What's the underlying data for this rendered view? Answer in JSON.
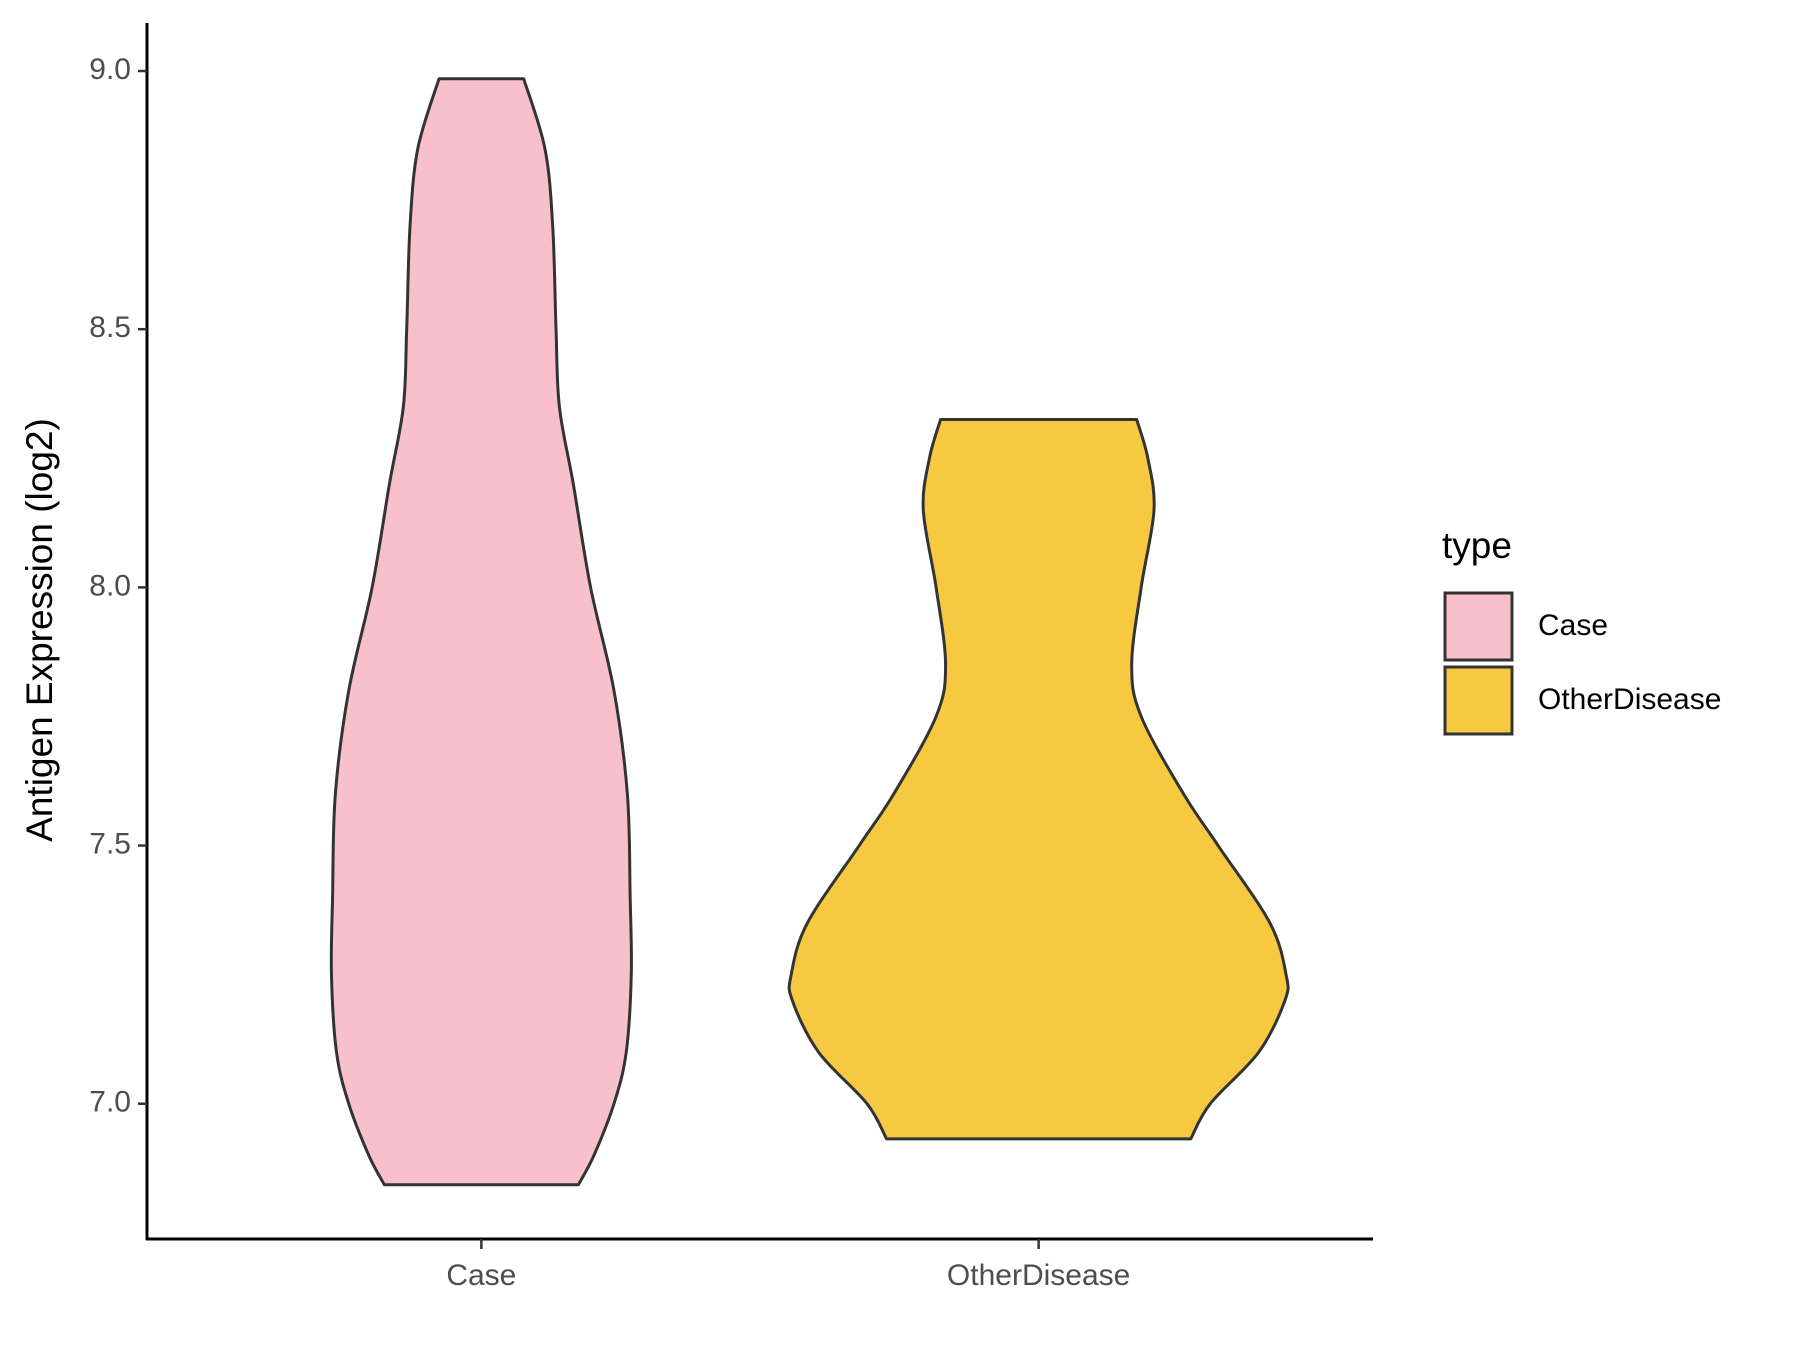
{
  "chart_data": {
    "type": "violin",
    "y_label": "Antigen Expression (log2)",
    "categories": [
      "Case",
      "OtherDisease"
    ],
    "legend_title": "type",
    "legend_position": "right",
    "ylim": [
      6.738,
      9.093
    ],
    "yticks": [
      {
        "value": 7.0,
        "label": "7.0"
      },
      {
        "value": 7.5,
        "label": "7.5"
      },
      {
        "value": 8.0,
        "label": "8.0"
      },
      {
        "value": 8.5,
        "label": "8.5"
      },
      {
        "value": 9.0,
        "label": "9.0"
      }
    ],
    "series": [
      {
        "name": "Case",
        "color": "#f7c0cb",
        "y": [
          8.985,
          8.85,
          8.7,
          8.5,
          8.35,
          8.2,
          8.0,
          7.8,
          7.6,
          7.4,
          7.25,
          7.1,
          7.0,
          6.9,
          6.843
        ],
        "half_width": [
          0.076,
          0.114,
          0.128,
          0.134,
          0.14,
          0.165,
          0.196,
          0.238,
          0.262,
          0.267,
          0.269,
          0.26,
          0.238,
          0.202,
          0.174
        ]
      },
      {
        "name": "OtherDisease",
        "color": "#f6c940",
        "y": [
          8.325,
          8.25,
          8.15,
          8.0,
          7.85,
          7.75,
          7.6,
          7.5,
          7.35,
          7.25,
          7.2,
          7.1,
          7.0,
          6.932
        ],
        "half_width": [
          0.176,
          0.196,
          0.207,
          0.184,
          0.167,
          0.184,
          0.26,
          0.322,
          0.415,
          0.444,
          0.442,
          0.395,
          0.308,
          0.273
        ]
      }
    ]
  }
}
